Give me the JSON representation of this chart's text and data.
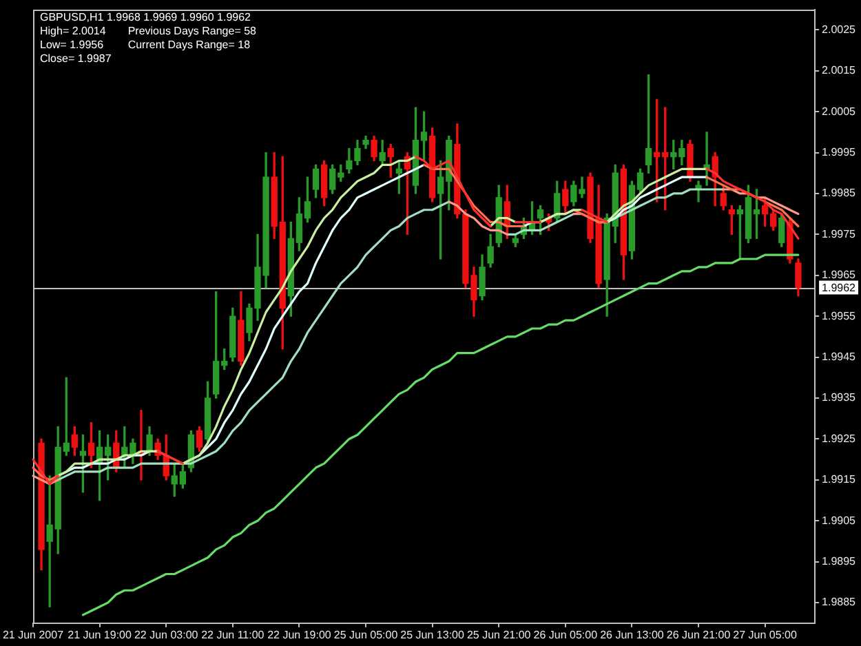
{
  "chart_data": {
    "type": "candlestick",
    "title": "GBPUSD,H1 1.9968 1.9969 1.9960 1.9962",
    "annotations": [
      "High= 2.0014",
      "Previous Days Range= 58",
      "Low= 1.9956",
      "Current Days Range= 18",
      "Close= 1.9987"
    ],
    "categories": [
      "21 Jun 2007",
      null,
      null,
      null,
      null,
      null,
      null,
      null,
      "21 Jun 19:00",
      null,
      null,
      null,
      null,
      null,
      null,
      null,
      "22 Jun 03:00",
      null,
      null,
      null,
      null,
      null,
      null,
      null,
      "22 Jun 11:00",
      null,
      null,
      null,
      null,
      null,
      null,
      null,
      "22 Jun 19:00",
      null,
      null,
      null,
      null,
      null,
      null,
      null,
      "25 Jun 05:00",
      null,
      null,
      null,
      null,
      null,
      null,
      null,
      "25 Jun 13:00",
      null,
      null,
      null,
      null,
      null,
      null,
      null,
      "25 Jun 21:00",
      null,
      null,
      null,
      null,
      null,
      null,
      null,
      "26 Jun 05:00",
      null,
      null,
      null,
      null,
      null,
      null,
      null,
      "26 Jun 13:00",
      null,
      null,
      null,
      null,
      null,
      null,
      null,
      "26 Jun 21:00",
      null,
      null,
      null,
      null,
      null,
      null,
      null,
      "27 Jun 05:00",
      null,
      null,
      null,
      null,
      null,
      null
    ],
    "ohlc": [
      null,
      [
        1.9924,
        1.9925,
        1.9893,
        1.9898
      ],
      [
        1.99,
        1.9916,
        1.9884,
        1.9904
      ],
      [
        1.9903,
        1.9928,
        1.9897,
        1.9923
      ],
      [
        1.9922,
        1.994,
        1.9921,
        1.9924
      ],
      [
        1.9926,
        1.9928,
        1.9921,
        1.9923
      ],
      [
        1.9921,
        1.9926,
        1.9912,
        1.9922
      ],
      [
        1.9924,
        1.9929,
        1.9918,
        1.9921
      ],
      [
        1.9919,
        1.9927,
        1.991,
        1.9923
      ],
      [
        1.9921,
        1.9926,
        1.9915,
        1.9923
      ],
      [
        1.9924,
        1.9927,
        1.9917,
        1.9918
      ],
      [
        1.9921,
        1.9928,
        1.9918,
        1.9923
      ],
      [
        1.9921,
        1.9925,
        1.9919,
        1.9924
      ],
      [
        1.9922,
        1.9932,
        1.9915,
        1.9921
      ],
      [
        1.9922,
        1.9928,
        1.9921,
        1.9926
      ],
      [
        1.9924,
        1.9925,
        1.992,
        1.9921
      ],
      [
        1.9921,
        1.9926,
        1.9915,
        1.9916
      ],
      [
        1.9914,
        1.9919,
        1.9911,
        1.9916
      ],
      [
        1.9914,
        1.9919,
        1.9913,
        1.9917
      ],
      [
        1.9918,
        1.9927,
        1.9917,
        1.9926
      ],
      [
        1.9927,
        1.9928,
        1.9922,
        1.9923
      ],
      [
        1.9925,
        1.9939,
        1.9924,
        1.9935
      ],
      [
        1.9936,
        1.9961,
        1.9935,
        1.9944
      ],
      [
        1.9943,
        1.9947,
        1.9942,
        1.9944
      ],
      [
        1.9945,
        1.9957,
        1.9944,
        1.9955
      ],
      [
        1.9954,
        1.9961,
        1.9943,
        1.9944
      ],
      [
        1.9951,
        1.9958,
        1.9949,
        1.9957
      ],
      [
        1.9957,
        1.9975,
        1.9954,
        1.9967
      ],
      [
        1.9965,
        1.9995,
        1.9962,
        1.9989
      ],
      [
        1.9989,
        1.9995,
        1.9974,
        1.9977
      ],
      [
        1.9978,
        1.9994,
        1.9947,
        1.9957
      ],
      [
        1.996,
        1.9978,
        1.9955,
        1.9974
      ],
      [
        1.9973,
        1.9984,
        1.9971,
        1.998
      ],
      [
        1.9979,
        1.9989,
        1.9978,
        1.9983
      ],
      [
        1.9986,
        1.9992,
        1.9984,
        1.9991
      ],
      [
        1.9992,
        1.9993,
        1.9982,
        1.9984
      ],
      [
        1.9986,
        1.9992,
        1.9985,
        1.9991
      ],
      [
        1.9989,
        1.9992,
        1.9988,
        1.999
      ],
      [
        1.9991,
        1.9996,
        1.999,
        1.9993
      ],
      [
        1.9993,
        1.9998,
        1.9992,
        1.9996
      ],
      [
        1.9997,
        1.9999,
        1.9996,
        1.9998
      ],
      [
        1.9998,
        1.9999,
        1.9993,
        1.9994
      ],
      [
        1.9993,
        1.9998,
        1.9992,
        1.9995
      ],
      [
        1.9996,
        1.9997,
        1.9989,
        1.9994
      ],
      [
        1.999,
        1.9993,
        1.9985,
        1.9991
      ],
      [
        1.9994,
        1.9995,
        1.9975,
        1.9991
      ],
      [
        1.9987,
        2.0006,
        1.9985,
        1.9998
      ],
      [
        1.9998,
        2.0005,
        1.9993,
        2
      ],
      [
        1.9999,
        2.0001,
        1.9983,
        1.9984
      ],
      [
        1.9985,
        1.9993,
        1.9969,
        1.9989
      ],
      [
        1.9988,
        1.9999,
        1.9981,
        1.9998
      ],
      [
        1.9997,
        2.0002,
        1.9979,
        1.998
      ],
      [
        1.998,
        1.9981,
        1.9962,
        1.9963
      ],
      [
        1.9965,
        1.9967,
        1.9955,
        1.9959
      ],
      [
        1.996,
        1.997,
        1.9959,
        1.9967
      ],
      [
        1.9968,
        1.9975,
        1.9967,
        1.9972
      ],
      [
        1.9973,
        1.9987,
        1.9972,
        1.9984
      ],
      [
        1.9983,
        1.9987,
        1.9974,
        1.9977
      ],
      [
        1.9973,
        1.9975,
        1.9972,
        1.9974
      ],
      [
        1.9975,
        1.9979,
        1.9974,
        1.9977
      ],
      [
        1.9976,
        1.9983,
        1.9975,
        1.9978
      ],
      [
        1.9979,
        1.9982,
        1.9975,
        1.9981
      ],
      [
        1.9979,
        1.998,
        1.9976,
        1.9978
      ],
      [
        1.9979,
        1.9988,
        1.9978,
        1.9985
      ],
      [
        1.9986,
        1.9988,
        1.998,
        1.9982
      ],
      [
        1.9983,
        1.9988,
        1.9982,
        1.9987
      ],
      [
        1.9985,
        1.9989,
        1.9984,
        1.9986
      ],
      [
        1.9989,
        1.999,
        1.9973,
        1.9974
      ],
      [
        1.9979,
        1.9987,
        1.9962,
        1.9963
      ],
      [
        1.9964,
        1.998,
        1.9955,
        1.9979
      ],
      [
        1.9977,
        1.9992,
        1.9973,
        1.999
      ],
      [
        1.9991,
        1.9992,
        1.9964,
        1.997
      ],
      [
        1.9971,
        1.9988,
        1.9969,
        1.9987
      ],
      [
        1.9986,
        1.9991,
        1.9985,
        1.999
      ],
      [
        1.9992,
        2.0014,
        1.999,
        1.9996
      ],
      [
        1.9995,
        2.0008,
        1.9983,
        1.9994
      ],
      [
        1.9995,
        2.0006,
        1.9981,
        1.9994
      ],
      [
        1.9994,
        1.9998,
        1.9991,
        1.9995
      ],
      [
        1.9994,
        1.9998,
        1.9992,
        1.9996
      ],
      [
        1.9997,
        1.9998,
        1.9988,
        1.9989
      ],
      [
        1.9986,
        1.9988,
        1.9983,
        1.9987
      ],
      [
        1.9991,
        2,
        1.9987,
        1.9992
      ],
      [
        1.9994,
        1.9995,
        1.9982,
        1.9989
      ],
      [
        1.9985,
        1.9987,
        1.9981,
        1.9982
      ],
      [
        1.9981,
        1.9982,
        1.9975,
        1.998
      ],
      [
        1.998,
        1.9982,
        1.9969,
        1.9981
      ],
      [
        1.9974,
        1.9987,
        1.9973,
        1.9984
      ],
      [
        1.998,
        1.9986,
        1.9974,
        1.9981
      ],
      [
        1.9982,
        1.9984,
        1.9977,
        1.998
      ],
      [
        1.998,
        1.9981,
        1.9976,
        1.9977
      ],
      [
        1.9973,
        1.998,
        1.9972,
        1.9979
      ],
      [
        1.9978,
        1.9979,
        1.9968,
        1.9969
      ],
      [
        1.9968,
        1.9969,
        1.996,
        1.9962
      ],
      null,
      null
    ],
    "colors": [
      null,
      "#ee1111",
      "#2a9a2a",
      "#2a9a2a",
      "#2a9a2a",
      "#ee1111",
      "#2a9a2a",
      "#ee1111",
      "#2a9a2a",
      "#2a9a2a",
      "#ee1111",
      "#2a9a2a",
      "#2a9a2a",
      "#ee1111",
      "#2a9a2a",
      "#ee1111",
      "#ee1111",
      "#2a9a2a",
      "#2a9a2a",
      "#2a9a2a",
      "#ee1111",
      "#2a9a2a",
      "#2a9a2a",
      "#2a9a2a",
      "#2a9a2a",
      "#ee1111",
      "#2a9a2a",
      "#2a9a2a",
      "#2a9a2a",
      "#ee1111",
      "#ee1111",
      "#2a9a2a",
      "#2a9a2a",
      "#2a9a2a",
      "#2a9a2a",
      "#ee1111",
      "#2a9a2a",
      "#2a9a2a",
      "#2a9a2a",
      "#2a9a2a",
      "#2a9a2a",
      "#ee1111",
      "#2a9a2a",
      "#ee1111",
      "#2a9a2a",
      "#ee1111",
      "#2a9a2a",
      "#2a9a2a",
      "#ee1111",
      "#2a9a2a",
      "#2a9a2a",
      "#ee1111",
      "#ee1111",
      "#ee1111",
      "#2a9a2a",
      "#2a9a2a",
      "#2a9a2a",
      "#ee1111",
      "#2a9a2a",
      "#2a9a2a",
      "#2a9a2a",
      "#2a9a2a",
      "#ee1111",
      "#2a9a2a",
      "#ee1111",
      "#2a9a2a",
      "#2a9a2a",
      "#ee1111",
      "#ee1111",
      "#2a9a2a",
      "#2a9a2a",
      "#ee1111",
      "#2a9a2a",
      "#2a9a2a",
      "#2a9a2a",
      "#ee1111",
      "#ee1111",
      "#2a9a2a",
      "#2a9a2a",
      "#ee1111",
      "#2a9a2a",
      "#2a9a2a",
      "#ee1111",
      "#ee1111",
      "#ee1111",
      "#2a9a2a",
      "#2a9a2a",
      "#2a9a2a",
      "#ee1111",
      "#ee1111",
      "#2a9a2a",
      "#ee1111",
      "#ee1111",
      null,
      null
    ],
    "series": [
      {
        "type": "line",
        "color": "#66dd66",
        "values": [
          null,
          null,
          null,
          null,
          null,
          null,
          1.9882,
          1.9883,
          1.9884,
          1.9885,
          1.9887,
          1.9888,
          1.9888,
          1.9889,
          1.989,
          1.9891,
          1.9892,
          1.9892,
          1.9893,
          1.9894,
          1.9895,
          1.9896,
          1.9898,
          1.9899,
          1.9901,
          1.9902,
          1.9904,
          1.9905,
          1.9907,
          1.9908,
          1.991,
          1.9912,
          1.9914,
          1.9916,
          1.9918,
          1.9919,
          1.9921,
          1.9923,
          1.9925,
          1.9926,
          1.9928,
          1.993,
          1.9932,
          1.9934,
          1.9936,
          1.9937,
          1.9939,
          1.994,
          1.9942,
          1.9943,
          1.9944,
          1.9946,
          1.9946,
          1.9946,
          1.9947,
          1.9948,
          1.9949,
          1.995,
          1.995,
          1.9951,
          1.9952,
          1.9952,
          1.9953,
          1.9953,
          1.9954,
          1.9954,
          1.9955,
          1.9956,
          1.9957,
          1.9958,
          1.9959,
          1.996,
          1.9961,
          1.9962,
          1.9963,
          1.9963,
          1.9964,
          1.9965,
          1.9966,
          1.9966,
          1.9967,
          1.9967,
          1.9968,
          1.9968,
          1.9968,
          1.9969,
          1.9969,
          1.9969,
          1.997,
          1.997,
          1.997,
          1.997,
          1.997,
          null,
          null
        ]
      },
      {
        "type": "line",
        "color": "#a0e0c0",
        "values": [
          null,
          null,
          null,
          1.9915,
          1.9916,
          1.9917,
          1.9917,
          1.9917,
          1.9917,
          1.9918,
          1.9918,
          1.9918,
          1.9918,
          1.9919,
          1.9919,
          1.9919,
          1.9919,
          1.9919,
          1.9919,
          1.9919,
          1.992,
          1.9921,
          1.9922,
          1.9924,
          1.9927,
          1.9929,
          1.9932,
          1.9934,
          1.9936,
          1.9938,
          1.994,
          1.9944,
          1.9947,
          1.9951,
          1.9954,
          1.9957,
          1.996,
          1.9963,
          1.9965,
          1.9967,
          1.997,
          1.9972,
          1.9974,
          1.9976,
          1.9977,
          1.9979,
          1.998,
          1.9981,
          1.9981,
          1.9982,
          1.9983,
          null,
          null,
          null,
          null,
          null,
          null,
          1.9975,
          1.9975,
          1.9976,
          1.9976,
          1.9976,
          1.9977,
          1.9978,
          1.9979,
          1.998,
          null,
          null,
          1.9978,
          1.9978,
          1.9979,
          1.998,
          1.9981,
          1.9982,
          1.9983,
          1.9984,
          1.9984,
          1.9985,
          1.9985,
          1.9986,
          1.9986,
          1.9986,
          1.9986,
          1.9986,
          null,
          null,
          null,
          null,
          null,
          null,
          null,
          null,
          null,
          null,
          null
        ]
      },
      {
        "type": "line",
        "color": "#ff9a8a",
        "values": [
          1.9916,
          1.9915,
          1.9914,
          1.9915,
          null,
          null,
          null,
          null,
          null,
          null,
          null,
          null,
          null,
          null,
          null,
          null,
          null,
          null,
          null,
          null,
          null,
          null,
          null,
          null,
          null,
          null,
          null,
          null,
          null,
          null,
          null,
          null,
          null,
          null,
          null,
          null,
          null,
          null,
          null,
          null,
          null,
          null,
          null,
          null,
          null,
          null,
          null,
          null,
          null,
          null,
          1.9983,
          1.9982,
          1.998,
          1.9979,
          1.9977,
          1.9976,
          1.9976,
          1.9975,
          null,
          null,
          null,
          null,
          null,
          null,
          null,
          1.998,
          1.998,
          1.9979,
          1.9978,
          null,
          null,
          null,
          null,
          null,
          null,
          null,
          null,
          null,
          null,
          null,
          null,
          null,
          null,
          1.9986,
          1.9986,
          1.9985,
          1.9985,
          1.9984,
          1.9984,
          1.9983,
          1.9982,
          1.9981,
          1.998,
          null,
          null
        ]
      },
      {
        "type": "line",
        "color": "#e0ffff",
        "values": [
          null,
          null,
          null,
          1.9916,
          1.9917,
          1.9918,
          1.9918,
          1.9919,
          1.9919,
          1.9919,
          1.992,
          1.992,
          1.9921,
          1.9921,
          1.9922,
          1.9922,
          null,
          null,
          1.9919,
          1.992,
          1.9921,
          1.9923,
          1.9925,
          1.9929,
          1.9932,
          1.9936,
          1.9939,
          1.9943,
          1.9947,
          1.9952,
          1.9955,
          1.9958,
          1.9961,
          1.9963,
          1.9968,
          1.9972,
          1.9976,
          1.9979,
          1.9981,
          1.9984,
          1.9985,
          1.9986,
          1.9987,
          1.9988,
          1.9989,
          1.999,
          1.9991,
          1.9992,
          null,
          null,
          null,
          null,
          null,
          null,
          null,
          null,
          null,
          null,
          null,
          1.9977,
          1.9978,
          1.9978,
          1.9979,
          1.998,
          1.998,
          1.9981,
          null,
          null,
          null,
          1.9978,
          1.9979,
          1.9981,
          1.9982,
          1.9984,
          1.9985,
          1.9986,
          1.9987,
          1.9988,
          1.9989,
          1.9989,
          1.9989,
          1.9989,
          null,
          null,
          null,
          null,
          null,
          null,
          null,
          null,
          null,
          null,
          null,
          null,
          null
        ]
      },
      {
        "type": "line",
        "color": "#ff7050",
        "values": [
          1.9918,
          1.9916,
          1.9915,
          1.9916,
          null,
          null,
          null,
          null,
          null,
          null,
          null,
          null,
          null,
          null,
          null,
          1.9922,
          1.9921,
          1.992,
          1.9919,
          null,
          null,
          null,
          null,
          null,
          null,
          null,
          null,
          null,
          null,
          null,
          null,
          null,
          null,
          null,
          null,
          null,
          null,
          null,
          null,
          null,
          null,
          null,
          null,
          null,
          null,
          null,
          null,
          1.9992,
          1.9991,
          1.9991,
          1.9991,
          1.9988,
          1.9985,
          1.9982,
          1.998,
          1.9978,
          1.9978,
          1.9977,
          1.9977,
          1.9977,
          null,
          null,
          null,
          null,
          null,
          1.9981,
          1.998,
          1.9979,
          1.9978,
          1.9978,
          null,
          null,
          null,
          null,
          null,
          null,
          null,
          null,
          null,
          null,
          null,
          1.9989,
          1.9988,
          1.9987,
          1.9986,
          1.9986,
          1.9985,
          1.9984,
          1.9983,
          1.9982,
          1.9981,
          1.9979,
          1.9977,
          null,
          null
        ]
      },
      {
        "type": "line",
        "color": "#c8f0a0",
        "values": [
          null,
          null,
          null,
          1.9916,
          1.9917,
          1.9919,
          1.9919,
          1.9919,
          1.992,
          1.992,
          1.992,
          1.9921,
          1.9921,
          1.9922,
          1.9922,
          1.9922,
          null,
          null,
          1.9919,
          1.992,
          1.9921,
          1.9924,
          1.9928,
          1.9933,
          1.9937,
          1.9942,
          1.9946,
          1.9951,
          1.9956,
          1.9959,
          1.9962,
          1.9966,
          1.9969,
          1.9972,
          1.9976,
          1.9979,
          1.9981,
          1.9984,
          1.9986,
          1.9988,
          1.9989,
          1.999,
          1.9992,
          1.9992,
          1.9993,
          1.9993,
          1.9994,
          null,
          null,
          null,
          null,
          null,
          null,
          null,
          null,
          1.9977,
          1.9979,
          1.9979,
          1.9978,
          null,
          null,
          1.9978,
          1.9979,
          1.998,
          1.998,
          1.9981,
          1.9981,
          null,
          null,
          1.9978,
          1.998,
          1.9982,
          1.9983,
          1.9985,
          1.9987,
          1.9988,
          1.9989,
          1.999,
          1.9991,
          1.9991,
          1.9991,
          1.9991,
          null,
          null,
          null,
          null,
          null,
          null,
          null,
          null,
          null,
          null,
          null,
          null,
          null
        ]
      },
      {
        "type": "line",
        "color": "#ff3030",
        "values": [
          1.992,
          1.9917,
          1.9914,
          1.9916,
          null,
          null,
          null,
          null,
          null,
          null,
          null,
          null,
          null,
          null,
          null,
          1.9922,
          1.9921,
          1.992,
          1.9919,
          null,
          null,
          null,
          null,
          null,
          null,
          null,
          null,
          null,
          null,
          null,
          null,
          null,
          null,
          null,
          null,
          null,
          null,
          null,
          null,
          null,
          null,
          null,
          null,
          null,
          null,
          null,
          1.9994,
          1.9993,
          1.9991,
          1.9992,
          1.9993,
          1.9989,
          1.9985,
          1.9981,
          1.9979,
          1.9977,
          null,
          null,
          1.9978,
          1.9978,
          1.9978,
          1.9978,
          null,
          null,
          null,
          null,
          1.9981,
          1.998,
          1.9979,
          1.9978,
          null,
          null,
          null,
          null,
          null,
          null,
          null,
          null,
          null,
          null,
          null,
          1.9991,
          1.999,
          1.9988,
          1.9987,
          1.9986,
          1.9985,
          1.9984,
          1.9983,
          1.9981,
          1.998,
          1.9977,
          1.9974,
          null,
          null
        ]
      }
    ],
    "ylim": [
      1.988,
      2.003
    ],
    "yticks": [
      2.0025,
      2.0015,
      2.0005,
      1.9995,
      1.9985,
      1.9975,
      1.9965,
      1.9955,
      1.9945,
      1.9935,
      1.9925,
      1.9915,
      1.9905,
      1.9895,
      1.9885
    ],
    "ref_lines": [
      {
        "axis": "y",
        "value": 1.9962,
        "label": "1.9962",
        "color": "#c0c0c0"
      }
    ]
  }
}
